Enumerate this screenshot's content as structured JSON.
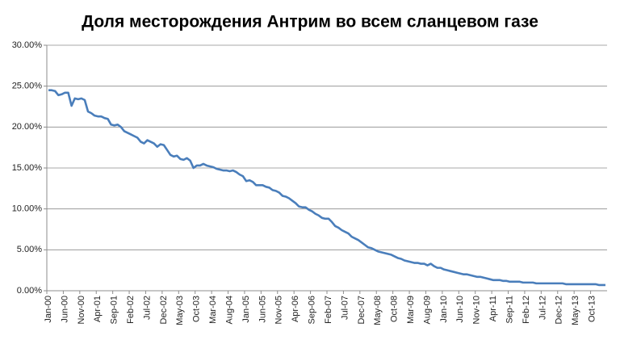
{
  "chart_data": {
    "type": "line",
    "title": "Доля месторождения Антрим во всем сланцевом газе",
    "categories": [
      "Jan-00",
      null,
      null,
      null,
      null,
      "Jun-00",
      null,
      null,
      null,
      null,
      "Nov-00",
      null,
      null,
      null,
      null,
      "Apr-01",
      null,
      null,
      null,
      null,
      "Sep-01",
      null,
      null,
      null,
      null,
      "Feb-02",
      null,
      null,
      null,
      null,
      "Jul-02",
      null,
      null,
      null,
      null,
      "Dec-02",
      null,
      null,
      null,
      null,
      "May-03",
      null,
      null,
      null,
      null,
      "Oct-03",
      null,
      null,
      null,
      null,
      "Mar-04",
      null,
      null,
      null,
      null,
      "Aug-04",
      null,
      null,
      null,
      null,
      "Jan-05",
      null,
      null,
      null,
      null,
      "Jun-05",
      null,
      null,
      null,
      null,
      "Nov-05",
      null,
      null,
      null,
      null,
      "Apr-06",
      null,
      null,
      null,
      null,
      "Sep-06",
      null,
      null,
      null,
      null,
      "Feb-07",
      null,
      null,
      null,
      null,
      "Jul-07",
      null,
      null,
      null,
      null,
      "Dec-07",
      null,
      null,
      null,
      null,
      "May-08",
      null,
      null,
      null,
      null,
      "Oct-08",
      null,
      null,
      null,
      null,
      "Mar-09",
      null,
      null,
      null,
      null,
      "Aug-09",
      null,
      null,
      null,
      null,
      "Jan-10",
      null,
      null,
      null,
      null,
      "Jun-10",
      null,
      null,
      null,
      null,
      "Nov-10",
      null,
      null,
      null,
      null,
      "Apr-11",
      null,
      null,
      null,
      null,
      "Sep-11",
      null,
      null,
      null,
      null,
      "Feb-12",
      null,
      null,
      null,
      null,
      "Jul-12",
      null,
      null,
      null,
      null,
      "Dec-12",
      null,
      null,
      null,
      null,
      "May-13",
      null,
      null,
      null,
      null,
      "Oct-13",
      null,
      null,
      null,
      null
    ],
    "values": [
      24.5,
      24.5,
      24.4,
      23.9,
      24.0,
      24.2,
      24.2,
      22.6,
      23.5,
      23.4,
      23.5,
      23.3,
      21.9,
      21.7,
      21.4,
      21.3,
      21.3,
      21.1,
      21.0,
      20.3,
      20.2,
      20.3,
      20.0,
      19.5,
      19.3,
      19.1,
      18.9,
      18.7,
      18.2,
      18.0,
      18.4,
      18.2,
      18.0,
      17.6,
      17.9,
      17.8,
      17.2,
      16.6,
      16.4,
      16.5,
      16.1,
      16.0,
      16.2,
      15.9,
      15.0,
      15.3,
      15.3,
      15.5,
      15.3,
      15.2,
      15.1,
      14.9,
      14.8,
      14.7,
      14.7,
      14.6,
      14.7,
      14.5,
      14.2,
      14.0,
      13.4,
      13.5,
      13.3,
      12.9,
      12.9,
      12.9,
      12.7,
      12.6,
      12.3,
      12.2,
      12.0,
      11.6,
      11.5,
      11.3,
      11.0,
      10.7,
      10.3,
      10.2,
      10.2,
      9.9,
      9.7,
      9.4,
      9.2,
      8.9,
      8.8,
      8.8,
      8.4,
      7.9,
      7.7,
      7.4,
      7.2,
      7.0,
      6.6,
      6.4,
      6.2,
      5.9,
      5.6,
      5.3,
      5.2,
      5.0,
      4.8,
      4.7,
      4.6,
      4.5,
      4.4,
      4.2,
      4.0,
      3.9,
      3.7,
      3.6,
      3.5,
      3.4,
      3.4,
      3.3,
      3.3,
      3.1,
      3.3,
      3.0,
      2.8,
      2.8,
      2.6,
      2.5,
      2.4,
      2.3,
      2.2,
      2.1,
      2.0,
      2.0,
      1.9,
      1.8,
      1.7,
      1.7,
      1.6,
      1.5,
      1.4,
      1.3,
      1.3,
      1.3,
      1.2,
      1.2,
      1.1,
      1.1,
      1.1,
      1.1,
      1.0,
      1.0,
      1.0,
      1.0,
      0.9,
      0.9,
      0.9,
      0.9,
      0.9,
      0.9,
      0.9,
      0.9,
      0.9,
      0.8,
      0.8,
      0.8,
      0.8,
      0.8,
      0.8,
      0.8,
      0.8,
      0.8,
      0.8,
      0.7,
      0.7,
      0.7
    ],
    "color": "#4a7ebb",
    "ylim": [
      0,
      30
    ],
    "yticks": [
      {
        "value": 0,
        "label": "0.00%"
      },
      {
        "value": 5,
        "label": "5.00%"
      },
      {
        "value": 10,
        "label": "10.00%"
      },
      {
        "value": 15,
        "label": "15.00%"
      },
      {
        "value": 20,
        "label": "20.00%"
      },
      {
        "value": 25,
        "label": "25.00%"
      },
      {
        "value": 30,
        "label": "30.00%"
      }
    ],
    "grid": true
  }
}
